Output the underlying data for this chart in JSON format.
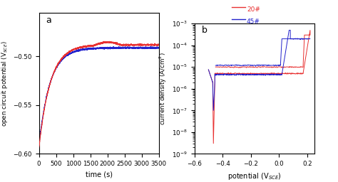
{
  "fig_width": 4.74,
  "fig_height": 2.56,
  "dpi": 100,
  "bg_color": "#ffffff",
  "panel_a": {
    "label": "a",
    "xlabel": "time (s)",
    "ylabel": "open circuit potential (V$_{SCE}$)",
    "xlim": [
      0,
      3500
    ],
    "ylim": [
      -0.6,
      -0.455
    ],
    "yticks": [
      -0.6,
      -0.55,
      -0.5
    ],
    "xticks": [
      0,
      500,
      1000,
      1500,
      2000,
      2500,
      3000,
      3500
    ],
    "color_20": "#e83030",
    "color_45": "#2222cc"
  },
  "panel_b": {
    "label": "b",
    "xlabel": "potential (V$_{SCE}$)",
    "ylabel": "current density (A/cm$^2$)",
    "xlim": [
      -0.6,
      0.25
    ],
    "ylim": [
      1e-09,
      0.001
    ],
    "xticks": [
      -0.6,
      -0.4,
      -0.2,
      0.0,
      0.2
    ],
    "color_20": "#e83030",
    "color_45": "#2222cc"
  },
  "legend": {
    "label_20": "20#",
    "label_45": "45#"
  }
}
